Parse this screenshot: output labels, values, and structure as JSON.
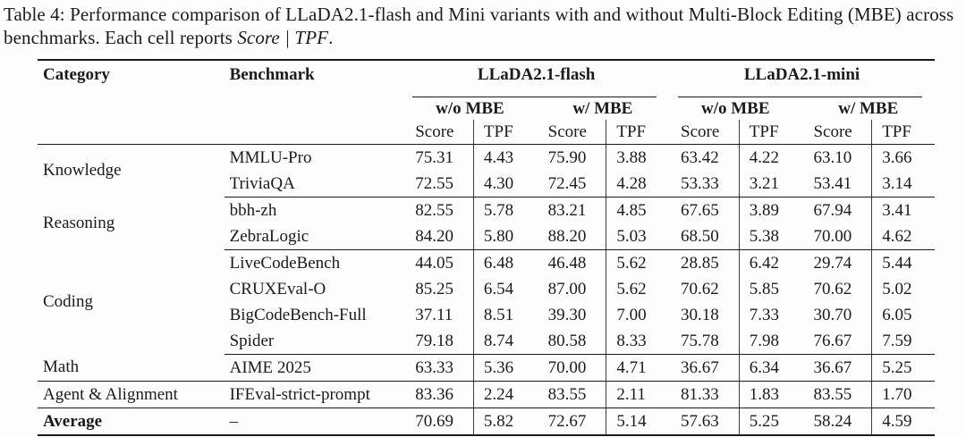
{
  "caption": {
    "prefix": "Table 4: Performance comparison of LLaDA2.1-flash and Mini variants with and without Multi-Block Editing (MBE) across benchmarks. Each cell reports ",
    "italic": "Score | TPF",
    "suffix": "."
  },
  "table": {
    "columns": {
      "category": "Category",
      "benchmark": "Benchmark",
      "score_label": "Score",
      "tpf_label": "TPF",
      "model_groups": [
        {
          "label": "LLaDA2.1-flash",
          "subgroups": [
            {
              "label": "w/o MBE"
            },
            {
              "label": "w/ MBE"
            }
          ]
        },
        {
          "label": "LLaDA2.1-mini",
          "subgroups": [
            {
              "label": "w/o MBE"
            },
            {
              "label": "w/ MBE"
            }
          ]
        }
      ]
    },
    "groups": [
      {
        "category": "Knowledge",
        "rows": [
          {
            "benchmark": "MMLU-Pro",
            "values": [
              [
                "75.31",
                "4.43"
              ],
              [
                "75.90",
                "3.88"
              ],
              [
                "63.42",
                "4.22"
              ],
              [
                "63.10",
                "3.66"
              ]
            ]
          },
          {
            "benchmark": "TriviaQA",
            "values": [
              [
                "72.55",
                "4.30"
              ],
              [
                "72.45",
                "4.28"
              ],
              [
                "53.33",
                "3.21"
              ],
              [
                "53.41",
                "3.14"
              ]
            ]
          }
        ]
      },
      {
        "category": "Reasoning",
        "rows": [
          {
            "benchmark": "bbh-zh",
            "values": [
              [
                "82.55",
                "5.78"
              ],
              [
                "83.21",
                "4.85"
              ],
              [
                "67.65",
                "3.89"
              ],
              [
                "67.94",
                "3.41"
              ]
            ]
          },
          {
            "benchmark": "ZebraLogic",
            "values": [
              [
                "84.20",
                "5.80"
              ],
              [
                "88.20",
                "5.03"
              ],
              [
                "68.50",
                "5.38"
              ],
              [
                "70.00",
                "4.62"
              ]
            ]
          }
        ]
      },
      {
        "category": "Coding",
        "rows": [
          {
            "benchmark": "LiveCodeBench",
            "values": [
              [
                "44.05",
                "6.48"
              ],
              [
                "46.48",
                "5.62"
              ],
              [
                "28.85",
                "6.42"
              ],
              [
                "29.74",
                "5.44"
              ]
            ]
          },
          {
            "benchmark": "CRUXEval-O",
            "values": [
              [
                "85.25",
                "6.54"
              ],
              [
                "87.00",
                "5.62"
              ],
              [
                "70.62",
                "5.85"
              ],
              [
                "70.62",
                "5.02"
              ]
            ]
          },
          {
            "benchmark": "BigCodeBench-Full",
            "values": [
              [
                "37.11",
                "8.51"
              ],
              [
                "39.30",
                "7.00"
              ],
              [
                "30.18",
                "7.33"
              ],
              [
                "30.70",
                "6.05"
              ]
            ]
          },
          {
            "benchmark": "Spider",
            "values": [
              [
                "79.18",
                "8.74"
              ],
              [
                "80.58",
                "8.33"
              ],
              [
                "75.78",
                "7.98"
              ],
              [
                "76.67",
                "7.59"
              ]
            ]
          }
        ]
      },
      {
        "category": "Math",
        "rows": [
          {
            "benchmark": "AIME 2025",
            "values": [
              [
                "63.33",
                "5.36"
              ],
              [
                "70.00",
                "4.71"
              ],
              [
                "36.67",
                "6.34"
              ],
              [
                "36.67",
                "5.25"
              ]
            ]
          }
        ]
      },
      {
        "category": "Agent & Alignment",
        "rows": [
          {
            "benchmark": "IFEval-strict-prompt",
            "values": [
              [
                "83.36",
                "2.24"
              ],
              [
                "83.55",
                "2.11"
              ],
              [
                "81.33",
                "1.83"
              ],
              [
                "83.55",
                "1.70"
              ]
            ]
          }
        ]
      },
      {
        "category": "Average",
        "bold": true,
        "rows": [
          {
            "benchmark": "–",
            "values": [
              [
                "70.69",
                "5.82"
              ],
              [
                "72.67",
                "5.14"
              ],
              [
                "57.63",
                "5.25"
              ],
              [
                "58.24",
                "4.59"
              ]
            ]
          }
        ]
      }
    ]
  }
}
